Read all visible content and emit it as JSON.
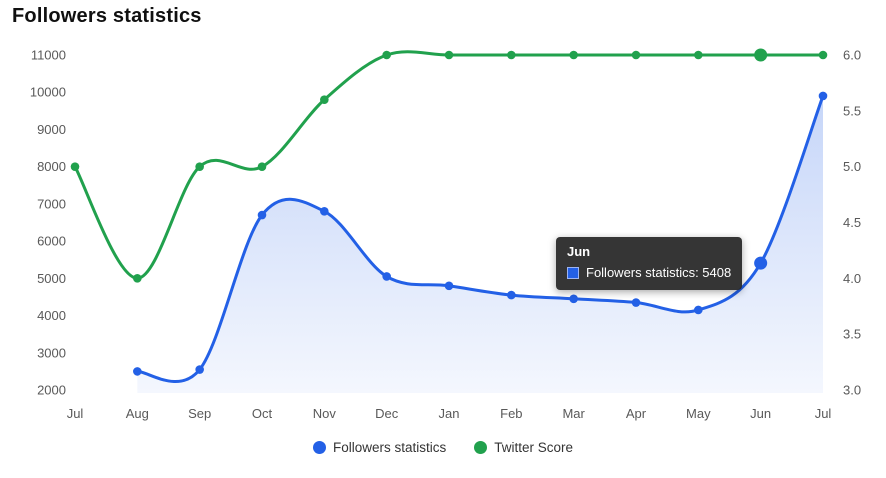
{
  "title": "Followers statistics",
  "chart_data": {
    "type": "line",
    "x": [
      "Jul",
      "Aug",
      "Sep",
      "Oct",
      "Nov",
      "Dec",
      "Jan",
      "Feb",
      "Mar",
      "Apr",
      "May",
      "Jun",
      "Jul"
    ],
    "series": [
      {
        "name": "Followers statistics",
        "axis": "left",
        "color": "#2360e6",
        "values": [
          null,
          2500,
          2550,
          6700,
          6800,
          5050,
          4800,
          4550,
          4450,
          4350,
          4150,
          5408,
          9900
        ],
        "area_fill": true
      },
      {
        "name": "Twitter Score",
        "axis": "right",
        "color": "#21a14d",
        "values": [
          5.0,
          4.0,
          5.0,
          5.0,
          5.6,
          6.0,
          6.0,
          6.0,
          6.0,
          6.0,
          6.0,
          6.0,
          6.0
        ],
        "area_fill": false
      }
    ],
    "left_axis": {
      "min": 2000,
      "max": 11000,
      "step": 1000,
      "ticks": [
        "2000",
        "3000",
        "4000",
        "5000",
        "6000",
        "7000",
        "8000",
        "9000",
        "10000",
        "11000"
      ]
    },
    "right_axis": {
      "min": 3.0,
      "max": 6.0,
      "step": 0.5,
      "ticks": [
        "3.0",
        "3.5",
        "4.0",
        "4.5",
        "5.0",
        "5.5",
        "6.0"
      ]
    },
    "hover_index": 11,
    "grid": false,
    "legend_position": "bottom"
  },
  "tooltip": {
    "title": "Jun",
    "series": "Followers statistics",
    "value": 5408,
    "text": "Followers statistics: 5408"
  },
  "legend": [
    {
      "label": "Followers statistics",
      "color": "#2360e6"
    },
    {
      "label": "Twitter Score",
      "color": "#21a14d"
    }
  ]
}
